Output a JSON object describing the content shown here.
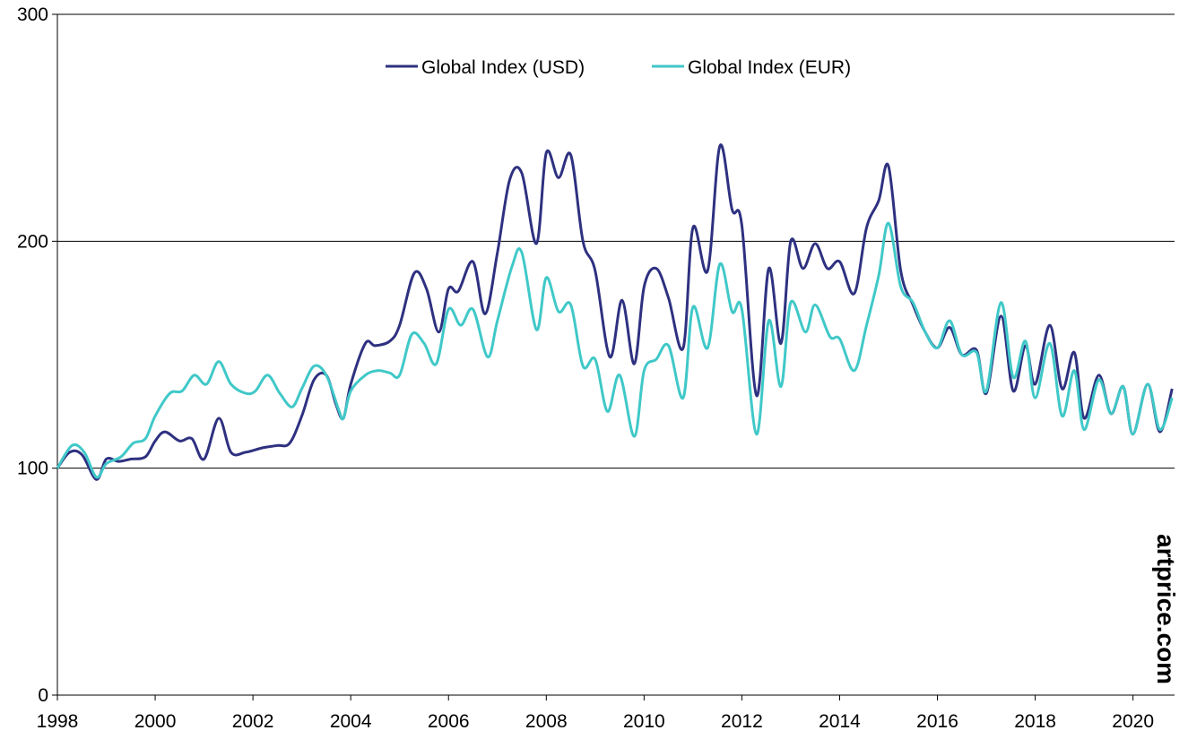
{
  "chart_data": {
    "type": "line",
    "title": "",
    "xlabel": "",
    "ylabel": "",
    "xlim": [
      1998,
      2020.85
    ],
    "ylim": [
      0,
      300
    ],
    "x_ticks": [
      "1998",
      "2000",
      "2002",
      "2004",
      "2006",
      "2008",
      "2010",
      "2012",
      "2014",
      "2016",
      "2018",
      "2020"
    ],
    "y_ticks": [
      "0",
      "100",
      "200",
      "300"
    ],
    "grid": "horizontal",
    "legend_position": "top-center",
    "watermark": "artprice.com",
    "series": [
      {
        "name": "Global Index (USD)",
        "color": "#2e3180",
        "x": [
          1998.0,
          1998.25,
          1998.5,
          1998.8,
          1999.0,
          1999.25,
          1999.5,
          1999.8,
          2000.0,
          2000.2,
          2000.5,
          2000.75,
          2001.0,
          2001.3,
          2001.55,
          2001.85,
          2002.2,
          2002.5,
          2002.75,
          2003.0,
          2003.25,
          2003.5,
          2003.7,
          2003.85,
          2004.0,
          2004.3,
          2004.5,
          2004.8,
          2005.0,
          2005.3,
          2005.55,
          2005.8,
          2006.0,
          2006.2,
          2006.5,
          2006.75,
          2007.0,
          2007.25,
          2007.5,
          2007.8,
          2008.0,
          2008.25,
          2008.5,
          2008.75,
          2009.0,
          2009.3,
          2009.55,
          2009.8,
          2010.0,
          2010.25,
          2010.5,
          2010.8,
          2011.0,
          2011.3,
          2011.55,
          2011.8,
          2012.0,
          2012.3,
          2012.55,
          2012.8,
          2013.0,
          2013.25,
          2013.5,
          2013.75,
          2014.0,
          2014.3,
          2014.55,
          2014.8,
          2015.0,
          2015.25,
          2015.5,
          2015.75,
          2016.0,
          2016.25,
          2016.5,
          2016.8,
          2017.0,
          2017.3,
          2017.55,
          2017.8,
          2018.0,
          2018.3,
          2018.55,
          2018.8,
          2019.0,
          2019.3,
          2019.55,
          2019.8,
          2020.0,
          2020.3,
          2020.55,
          2020.8
        ],
        "values": [
          100,
          107,
          106,
          95,
          104,
          103,
          104,
          105,
          112,
          116,
          112,
          113,
          104,
          122,
          107,
          107,
          109,
          110,
          111,
          123,
          139,
          141,
          128,
          122,
          137,
          155,
          154,
          156,
          163,
          186,
          179,
          160,
          179,
          178,
          191,
          168,
          195,
          227,
          230,
          199,
          239,
          228,
          238,
          200,
          187,
          149,
          174,
          146,
          180,
          188,
          175,
          153,
          206,
          187,
          242,
          214,
          207,
          132,
          188,
          155,
          200,
          188,
          199,
          188,
          191,
          177,
          206,
          218,
          233,
          187,
          172,
          160,
          153,
          162,
          150,
          152,
          133,
          167,
          134,
          154,
          137,
          163,
          135,
          151,
          122,
          141,
          124,
          136,
          115,
          137,
          116,
          135
        ]
      },
      {
        "name": "Global Index (EUR)",
        "color": "#40c8c8",
        "x": [
          1998.0,
          1998.3,
          1998.55,
          1998.8,
          1999.0,
          1999.3,
          1999.55,
          1999.8,
          2000.0,
          2000.3,
          2000.55,
          2000.8,
          2001.05,
          2001.3,
          2001.55,
          2001.85,
          2002.05,
          2002.3,
          2002.55,
          2002.8,
          2003.0,
          2003.25,
          2003.5,
          2003.75,
          2003.85,
          2004.0,
          2004.3,
          2004.55,
          2004.8,
          2005.0,
          2005.25,
          2005.5,
          2005.75,
          2006.0,
          2006.25,
          2006.5,
          2006.8,
          2007.0,
          2007.3,
          2007.5,
          2007.8,
          2008.0,
          2008.25,
          2008.5,
          2008.75,
          2009.0,
          2009.25,
          2009.5,
          2009.8,
          2010.0,
          2010.25,
          2010.5,
          2010.8,
          2011.0,
          2011.3,
          2011.55,
          2011.8,
          2012.0,
          2012.3,
          2012.55,
          2012.8,
          2013.0,
          2013.3,
          2013.5,
          2013.8,
          2014.0,
          2014.3,
          2014.55,
          2014.8,
          2015.0,
          2015.25,
          2015.5,
          2015.75,
          2016.0,
          2016.25,
          2016.5,
          2016.8,
          2017.0,
          2017.3,
          2017.55,
          2017.8,
          2018.0,
          2018.3,
          2018.55,
          2018.8,
          2019.0,
          2019.3,
          2019.55,
          2019.8,
          2020.0,
          2020.3,
          2020.55,
          2020.8
        ],
        "values": [
          100,
          110,
          107,
          96,
          102,
          105,
          111,
          113,
          123,
          133,
          134,
          141,
          137,
          147,
          137,
          133,
          134,
          141,
          133,
          127,
          135,
          145,
          141,
          126,
          122,
          134,
          141,
          143,
          142,
          141,
          159,
          155,
          146,
          170,
          163,
          170,
          149,
          165,
          189,
          195,
          161,
          184,
          169,
          172,
          145,
          148,
          125,
          141,
          114,
          143,
          148,
          154,
          131,
          171,
          153,
          190,
          169,
          170,
          115,
          165,
          136,
          173,
          160,
          172,
          158,
          157,
          143,
          163,
          185,
          208,
          180,
          173,
          160,
          153,
          165,
          150,
          151,
          134,
          173,
          140,
          156,
          131,
          155,
          123,
          143,
          117,
          139,
          124,
          136,
          115,
          137,
          117,
          131
        ]
      }
    ]
  }
}
